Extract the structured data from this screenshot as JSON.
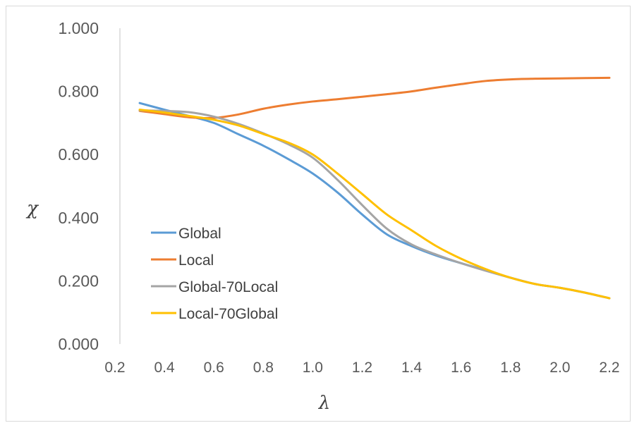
{
  "chart_data": {
    "type": "line",
    "xlabel": "λ",
    "ylabel": "χ",
    "xlim": [
      0.2,
      2.2
    ],
    "ylim": [
      0.0,
      1.0
    ],
    "x_ticks": [
      "0.2",
      "0.4",
      "0.6",
      "0.8",
      "1.0",
      "1.2",
      "1.4",
      "1.6",
      "1.8",
      "2.0",
      "2.2"
    ],
    "y_ticks": [
      "0.000",
      "0.200",
      "0.400",
      "0.600",
      "0.800",
      "1.000"
    ],
    "grid": false,
    "legend_position": "lower-left",
    "x": [
      0.3,
      0.4,
      0.5,
      0.6,
      0.7,
      0.8,
      0.9,
      1.0,
      1.1,
      1.2,
      1.3,
      1.4,
      1.5,
      1.6,
      1.7,
      1.8,
      1.9,
      2.0,
      2.1,
      2.2
    ],
    "series": [
      {
        "name": "Global",
        "color": "#5b9bd5",
        "values": [
          0.763,
          0.742,
          0.722,
          0.7,
          0.664,
          0.628,
          0.586,
          0.54,
          0.48,
          0.41,
          0.347,
          0.31,
          0.28,
          0.256,
          0.233,
          0.21,
          0.19,
          0.178,
          0.163,
          0.145
        ]
      },
      {
        "name": "Local",
        "color": "#ed7d31",
        "values": [
          0.738,
          0.728,
          0.718,
          0.716,
          0.727,
          0.745,
          0.758,
          0.768,
          0.775,
          0.783,
          0.791,
          0.8,
          0.812,
          0.823,
          0.833,
          0.838,
          0.84,
          0.841,
          0.842,
          0.843
        ]
      },
      {
        "name": "Global-70Local",
        "color": "#a5a5a5",
        "values": [
          0.74,
          0.738,
          0.734,
          0.72,
          0.697,
          0.667,
          0.633,
          0.59,
          0.52,
          0.44,
          0.365,
          0.315,
          0.283,
          0.256,
          0.232,
          0.21,
          0.19,
          0.178,
          0.163,
          0.145
        ]
      },
      {
        "name": "Local-70Global",
        "color": "#ffc000",
        "values": [
          0.742,
          0.733,
          0.722,
          0.71,
          0.692,
          0.665,
          0.638,
          0.6,
          0.54,
          0.475,
          0.41,
          0.36,
          0.31,
          0.27,
          0.237,
          0.21,
          0.19,
          0.178,
          0.163,
          0.145
        ]
      }
    ]
  }
}
